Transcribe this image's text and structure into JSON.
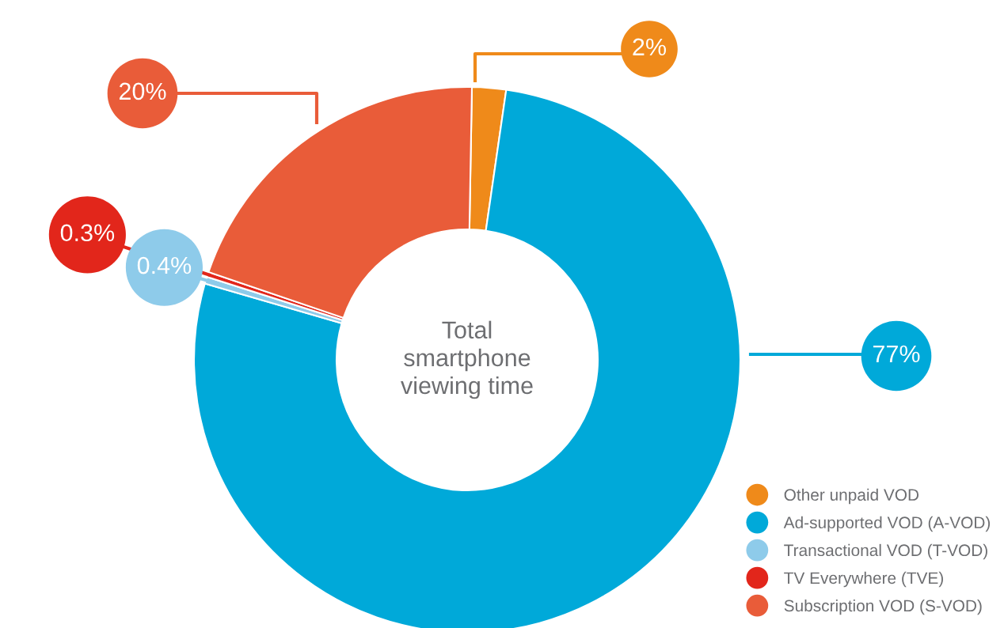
{
  "chart_data": {
    "type": "donut",
    "categories": [
      "Other unpaid VOD",
      "Ad-supported VOD (A-VOD)",
      "Transactional VOD (T-VOD)",
      "TV Everywhere (TVE)",
      "Subscription VOD (S-VOD)"
    ],
    "values": [
      2,
      77,
      0.4,
      0.3,
      20
    ],
    "colors": [
      "#ef8a1a",
      "#00a9d9",
      "#8ecbea",
      "#e2261b",
      "#e95c39"
    ],
    "value_labels": [
      "2%",
      "77%",
      "0.4%",
      "0.3%",
      "20%"
    ],
    "annotations": [
      "Total\nsmartphone\nviewing time"
    ],
    "legend": "bottom right"
  }
}
